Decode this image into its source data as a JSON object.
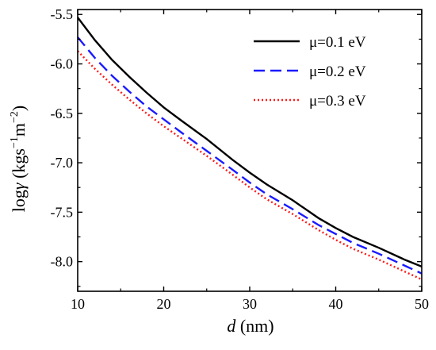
{
  "chart_data": {
    "type": "line",
    "xlabel": {
      "var": "d",
      "unit": " (nm)"
    },
    "ylabel": {
      "prefix": "log",
      "var": "γ",
      "open": " (kgs",
      "exp1": "−1",
      "mid": "m",
      "exp2": "−2",
      "close": ")"
    },
    "xlim": [
      10,
      50
    ],
    "ylim": [
      -8.3,
      -5.45
    ],
    "xticks": [
      10,
      20,
      30,
      40,
      50
    ],
    "xtick_labels": [
      "10",
      "20",
      "30",
      "40",
      "50"
    ],
    "yticks": [
      -5.5,
      -6.0,
      -6.5,
      -7.0,
      -7.5,
      -8.0
    ],
    "ytick_labels": [
      "-5.5",
      "-6.0",
      "-6.5",
      "-7.0",
      "-7.5",
      "-8.0"
    ],
    "grid": false,
    "legend_position": "top-right",
    "series": [
      {
        "name": "μ=0.1 eV",
        "color": "#000000",
        "style": "solid",
        "x": [
          10,
          12,
          14,
          16,
          18,
          20,
          22,
          25,
          28,
          30,
          32,
          35,
          38,
          40,
          42,
          45,
          48,
          50
        ],
        "y": [
          -5.53,
          -5.76,
          -5.96,
          -6.13,
          -6.29,
          -6.44,
          -6.57,
          -6.76,
          -6.97,
          -7.1,
          -7.22,
          -7.38,
          -7.56,
          -7.66,
          -7.75,
          -7.86,
          -7.98,
          -8.05
        ]
      },
      {
        "name": "μ=0.2 eV",
        "color": "#1a1aff",
        "style": "dashed",
        "x": [
          10,
          12,
          14,
          16,
          18,
          20,
          22,
          25,
          28,
          30,
          32,
          35,
          38,
          40,
          42,
          45,
          48,
          50
        ],
        "y": [
          -5.73,
          -5.94,
          -6.12,
          -6.28,
          -6.43,
          -6.56,
          -6.69,
          -6.88,
          -7.07,
          -7.2,
          -7.32,
          -7.47,
          -7.63,
          -7.72,
          -7.81,
          -7.92,
          -8.04,
          -8.12
        ]
      },
      {
        "name": "μ=0.3 eV",
        "color": "#ff1a1a",
        "style": "dotted",
        "x": [
          10,
          12,
          14,
          16,
          18,
          20,
          22,
          25,
          28,
          30,
          32,
          35,
          38,
          40,
          42,
          45,
          48,
          50
        ],
        "y": [
          -5.87,
          -6.05,
          -6.21,
          -6.36,
          -6.5,
          -6.63,
          -6.75,
          -6.93,
          -7.12,
          -7.25,
          -7.37,
          -7.52,
          -7.68,
          -7.78,
          -7.87,
          -7.98,
          -8.1,
          -8.18
        ]
      }
    ]
  }
}
